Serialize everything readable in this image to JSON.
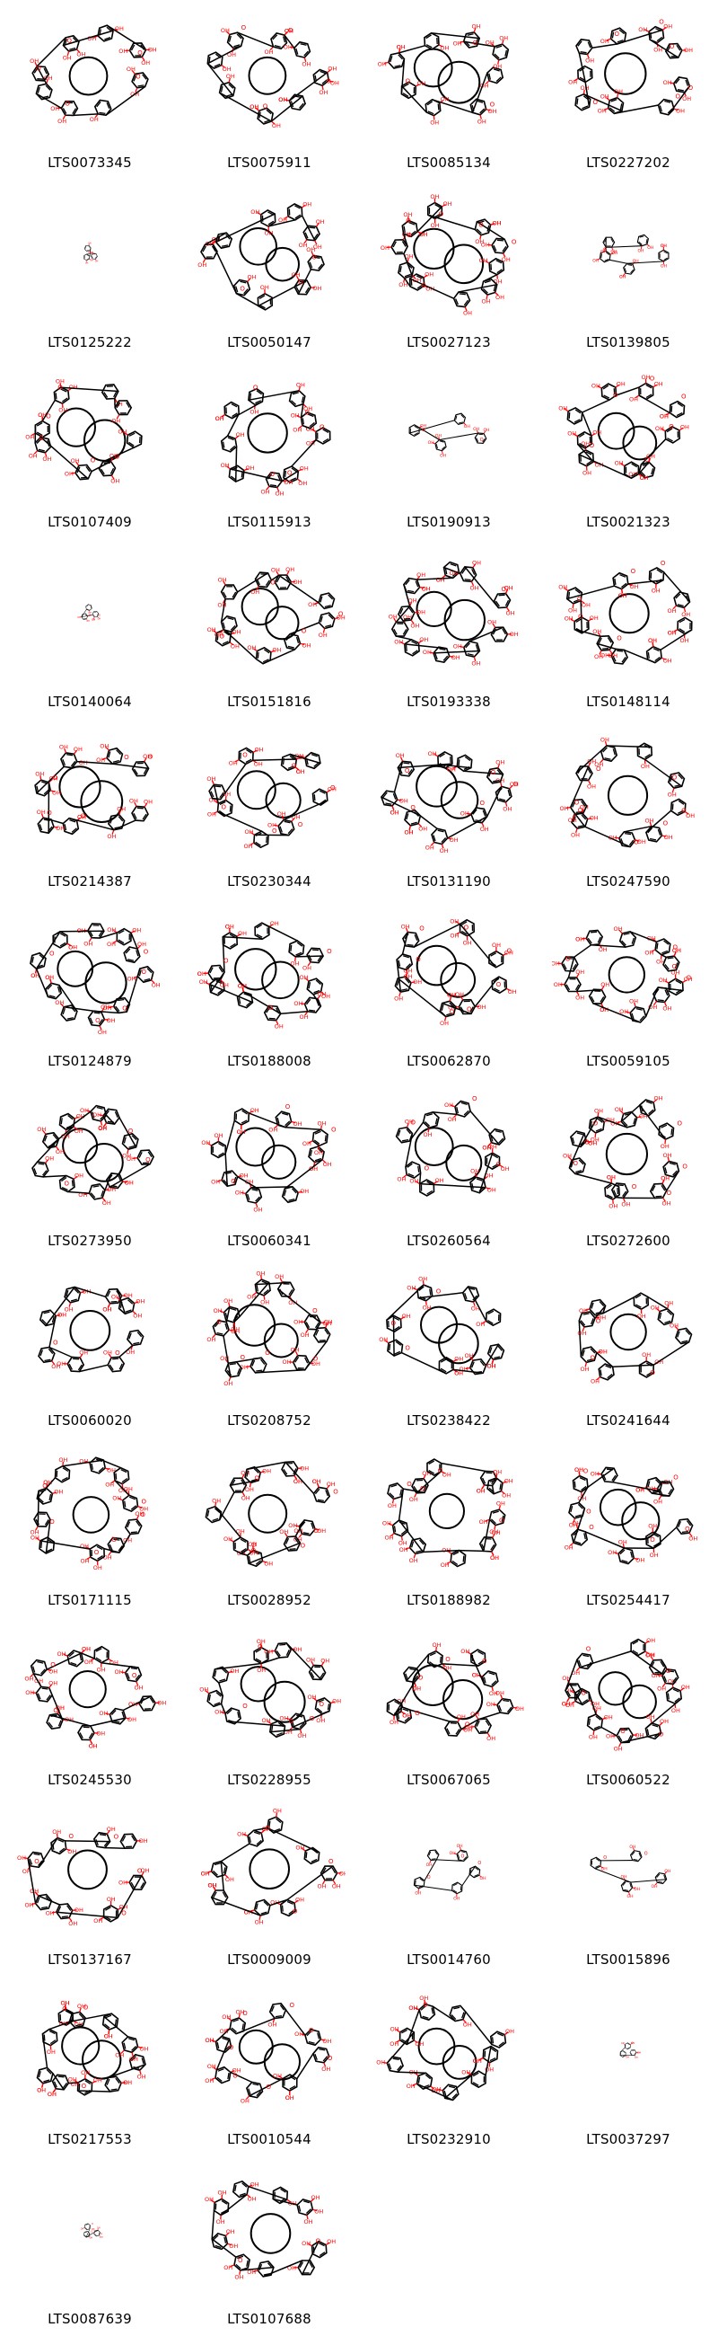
{
  "columns": 4,
  "colors": {
    "bond": "#000000",
    "oxygen": "#ff0000",
    "background": "#ffffff"
  },
  "molecules": [
    {
      "id": "LTS0073345",
      "size": "large"
    },
    {
      "id": "LTS0075911",
      "size": "large"
    },
    {
      "id": "LTS0085134",
      "size": "large"
    },
    {
      "id": "LTS0227202",
      "size": "large"
    },
    {
      "id": "LTS0125222",
      "size": "small"
    },
    {
      "id": "LTS0050147",
      "size": "large"
    },
    {
      "id": "LTS0027123",
      "size": "large"
    },
    {
      "id": "LTS0139805",
      "size": "medium"
    },
    {
      "id": "LTS0107409",
      "size": "large"
    },
    {
      "id": "LTS0115913",
      "size": "large"
    },
    {
      "id": "LTS0190913",
      "size": "medium"
    },
    {
      "id": "LTS0021323",
      "size": "large"
    },
    {
      "id": "LTS0140064",
      "size": "small"
    },
    {
      "id": "LTS0151816",
      "size": "large"
    },
    {
      "id": "LTS0193338",
      "size": "large"
    },
    {
      "id": "LTS0148114",
      "size": "large"
    },
    {
      "id": "LTS0214387",
      "size": "large"
    },
    {
      "id": "LTS0230344",
      "size": "large"
    },
    {
      "id": "LTS0131190",
      "size": "large"
    },
    {
      "id": "LTS0247590",
      "size": "large"
    },
    {
      "id": "LTS0124879",
      "size": "large"
    },
    {
      "id": "LTS0188008",
      "size": "large"
    },
    {
      "id": "LTS0062870",
      "size": "large"
    },
    {
      "id": "LTS0059105",
      "size": "large"
    },
    {
      "id": "LTS0273950",
      "size": "large"
    },
    {
      "id": "LTS0060341",
      "size": "large"
    },
    {
      "id": "LTS0260564",
      "size": "large"
    },
    {
      "id": "LTS0272600",
      "size": "large"
    },
    {
      "id": "LTS0060020",
      "size": "large"
    },
    {
      "id": "LTS0208752",
      "size": "large"
    },
    {
      "id": "LTS0238422",
      "size": "large"
    },
    {
      "id": "LTS0241644",
      "size": "large"
    },
    {
      "id": "LTS0171115",
      "size": "large"
    },
    {
      "id": "LTS0028952",
      "size": "large"
    },
    {
      "id": "LTS0188982",
      "size": "large"
    },
    {
      "id": "LTS0254417",
      "size": "large"
    },
    {
      "id": "LTS0245530",
      "size": "large"
    },
    {
      "id": "LTS0228955",
      "size": "large"
    },
    {
      "id": "LTS0067065",
      "size": "large"
    },
    {
      "id": "LTS0060522",
      "size": "large"
    },
    {
      "id": "LTS0137167",
      "size": "large"
    },
    {
      "id": "LTS0009009",
      "size": "large"
    },
    {
      "id": "LTS0014760",
      "size": "medium"
    },
    {
      "id": "LTS0015896",
      "size": "medium"
    },
    {
      "id": "LTS0217553",
      "size": "large"
    },
    {
      "id": "LTS0010544",
      "size": "large"
    },
    {
      "id": "LTS0232910",
      "size": "large"
    },
    {
      "id": "LTS0037297",
      "size": "small"
    },
    {
      "id": "LTS0087639",
      "size": "small"
    },
    {
      "id": "LTS0107688",
      "size": "large"
    }
  ]
}
